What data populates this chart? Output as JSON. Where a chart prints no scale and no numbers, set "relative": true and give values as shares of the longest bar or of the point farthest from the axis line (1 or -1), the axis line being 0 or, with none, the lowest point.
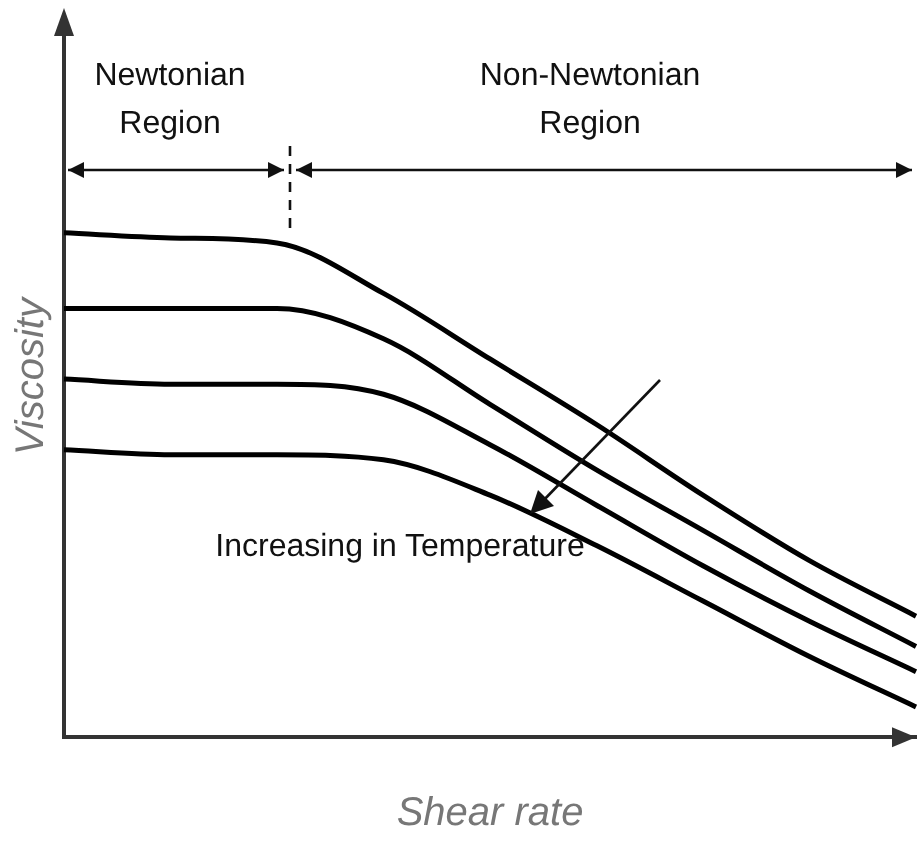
{
  "chart_data": {
    "type": "line",
    "relative": true,
    "xlabel": "Shear rate",
    "ylabel": "Viscosity",
    "marker": "none",
    "line_style": "solid",
    "grid": false,
    "legend": false,
    "annotations": [
      "Newtonian Region",
      "Non-Newtonian Region",
      "Increasing in Temperature"
    ],
    "categories": [
      null,
      null,
      null,
      null,
      null,
      null,
      null,
      null,
      null
    ],
    "series": [
      {
        "color": "#000000",
        "values": [
          1,
          0.99,
          0.98,
          0.88,
          0.75,
          0.62,
          0.48,
          0.35,
          0.24
        ]
      },
      {
        "color": "#000000",
        "values": [
          0.85,
          0.85,
          0.85,
          0.79,
          0.66,
          0.53,
          0.41,
          0.29,
          0.18
        ]
      },
      {
        "color": "#000000",
        "values": [
          0.71,
          0.7,
          0.7,
          0.68,
          0.58,
          0.46,
          0.34,
          0.23,
          0.13
        ]
      },
      {
        "color": "#000000",
        "values": [
          0.57,
          0.56,
          0.56,
          0.55,
          0.48,
          0.38,
          0.27,
          0.16,
          0.06
        ]
      }
    ]
  }
}
